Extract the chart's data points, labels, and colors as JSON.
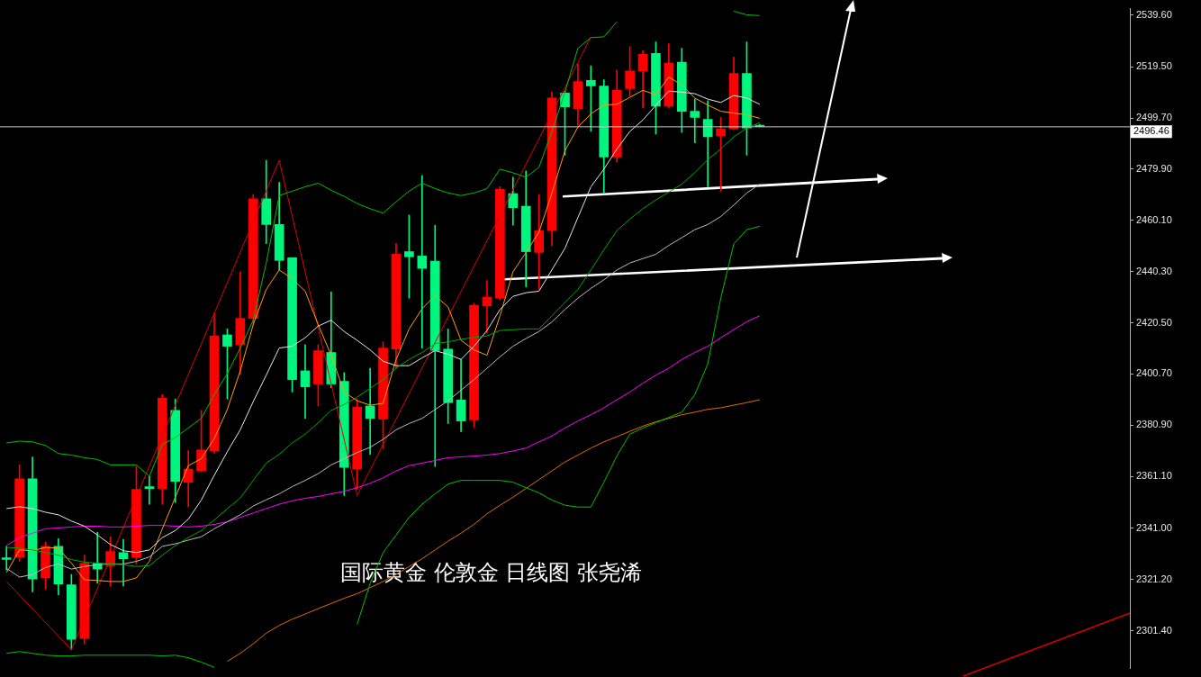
{
  "chart_data": {
    "type": "candlestick",
    "title": "国际黄金 伦敦金 日线图 张尧浠",
    "categories": [
      null,
      null,
      null,
      null,
      null,
      null,
      null,
      null,
      null,
      null,
      null,
      null,
      null,
      null,
      null,
      null,
      null,
      null,
      null,
      null,
      null,
      null,
      null,
      null,
      null,
      null,
      null,
      null,
      null,
      null,
      null,
      null,
      null,
      null,
      null,
      null,
      null,
      null,
      null,
      null,
      null,
      null,
      null,
      null,
      null,
      null,
      null,
      null,
      null,
      null,
      null,
      null,
      null,
      null,
      null,
      null,
      null,
      null,
      null
    ],
    "ohlc": [
      [
        2329.6,
        2334.0,
        2324.8,
        2328.9
      ],
      [
        2329.9,
        2365.5,
        2328.2,
        2360.1
      ],
      [
        2360.1,
        2368.6,
        2316.4,
        2321.4
      ],
      [
        2321.8,
        2335.7,
        2317.4,
        2334.0
      ],
      [
        2334.0,
        2337.0,
        2315.3,
        2319.4
      ],
      [
        2319.1,
        2323.1,
        2294.0,
        2298.0
      ],
      [
        2298.4,
        2330.6,
        2296.3,
        2327.5
      ],
      [
        2327.5,
        2339.4,
        2319.7,
        2325.2
      ],
      [
        2326.5,
        2337.7,
        2318.7,
        2332.0
      ],
      [
        2331.6,
        2336.7,
        2318.7,
        2329.2
      ],
      [
        2329.6,
        2364.9,
        2327.2,
        2356.0
      ],
      [
        2357.1,
        2361.1,
        2350.3,
        2356.4
      ],
      [
        2356.4,
        2392.7,
        2350.3,
        2391.3
      ],
      [
        2386.6,
        2391.0,
        2351.0,
        2359.1
      ],
      [
        2358.8,
        2371.0,
        2349.3,
        2363.9
      ],
      [
        2363.2,
        2386.6,
        2362.8,
        2371.3
      ],
      [
        2371.0,
        2424.2,
        2370.0,
        2415.4
      ],
      [
        2415.8,
        2418.1,
        2391.0,
        2411.4
      ],
      [
        2412.0,
        2440.2,
        2400.5,
        2422.2
      ],
      [
        2422.2,
        2470.1,
        2419.8,
        2468.4
      ],
      [
        2468.4,
        2483.3,
        2451.1,
        2458.5
      ],
      [
        2458.5,
        2474.8,
        2440.9,
        2444.6
      ],
      [
        2445.6,
        2445.6,
        2393.7,
        2398.5
      ],
      [
        2401.9,
        2412.0,
        2383.5,
        2395.7
      ],
      [
        2396.8,
        2412.0,
        2388.3,
        2409.7
      ],
      [
        2409.0,
        2432.4,
        2395.4,
        2396.8
      ],
      [
        2397.8,
        2401.2,
        2353.7,
        2364.5
      ],
      [
        2363.9,
        2391.0,
        2356.0,
        2387.9
      ],
      [
        2388.3,
        2402.9,
        2369.6,
        2383.5
      ],
      [
        2383.2,
        2413.1,
        2371.7,
        2410.7
      ],
      [
        2410.3,
        2451.1,
        2402.9,
        2447.0
      ],
      [
        2448.0,
        2462.2,
        2430.0,
        2446.0
      ],
      [
        2446.3,
        2477.5,
        2410.7,
        2441.5
      ],
      [
        2444.3,
        2458.2,
        2364.9,
        2409.7
      ],
      [
        2410.3,
        2418.1,
        2381.5,
        2389.6
      ],
      [
        2390.6,
        2406.3,
        2378.4,
        2382.5
      ],
      [
        2382.9,
        2428.0,
        2380.1,
        2427.3
      ],
      [
        2427.0,
        2436.8,
        2416.4,
        2430.4
      ],
      [
        2430.0,
        2473.1,
        2429.3,
        2472.1
      ],
      [
        2470.4,
        2476.8,
        2458.2,
        2465.0
      ],
      [
        2465.6,
        2479.2,
        2434.4,
        2448.0
      ],
      [
        2447.7,
        2470.1,
        2433.4,
        2456.1
      ],
      [
        2456.1,
        2509.8,
        2450.4,
        2507.4
      ],
      [
        2509.4,
        2510.1,
        2485.3,
        2504.0
      ],
      [
        2503.3,
        2520.6,
        2496.9,
        2513.8
      ],
      [
        2514.2,
        2519.9,
        2494.5,
        2512.1
      ],
      [
        2512.1,
        2514.5,
        2470.7,
        2484.6
      ],
      [
        2484.6,
        2518.2,
        2482.6,
        2510.4
      ],
      [
        2511.1,
        2527.4,
        2508.1,
        2517.9
      ],
      [
        2517.9,
        2525.7,
        2503.6,
        2524.3
      ],
      [
        2524.7,
        2529.1,
        2493.5,
        2504.3
      ],
      [
        2504.3,
        2528.4,
        2503.6,
        2520.9
      ],
      [
        2521.3,
        2526.7,
        2494.1,
        2502.3
      ],
      [
        2502.3,
        2507.0,
        2490.1,
        2499.9
      ],
      [
        2499.2,
        2506.4,
        2473.1,
        2492.4
      ],
      [
        2492.8,
        2499.9,
        2471.4,
        2495.5
      ],
      [
        2495.5,
        2523.3,
        2495.2,
        2516.9
      ],
      [
        2516.9,
        2529.1,
        2485.3,
        2495.8
      ],
      [
        2496.9,
        2497.2,
        2496.3,
        2496.46
      ]
    ],
    "colors": [
      "#00f57f",
      "#ff0000",
      "#00f57f",
      "#ff0000",
      "#00f57f",
      "#00f57f",
      "#ff0000",
      "#00f57f",
      "#ff0000",
      "#00f57f",
      "#ff0000",
      "#00f57f",
      "#ff0000",
      "#00f57f",
      "#ff0000",
      "#ff0000",
      "#ff0000",
      "#00f57f",
      "#ff0000",
      "#ff0000",
      "#00f57f",
      "#00f57f",
      "#00f57f",
      "#00f57f",
      "#ff0000",
      "#00f57f",
      "#00f57f",
      "#ff0000",
      "#00f57f",
      "#ff0000",
      "#ff0000",
      "#00f57f",
      "#00f57f",
      "#00f57f",
      "#00f57f",
      "#00f57f",
      "#ff0000",
      "#ff0000",
      "#ff0000",
      "#00f57f",
      "#00f57f",
      "#ff0000",
      "#ff0000",
      "#00f57f",
      "#ff0000",
      "#00f57f",
      "#00f57f",
      "#ff0000",
      "#ff0000",
      "#ff0000",
      "#00f57f",
      "#ff0000",
      "#00f57f",
      "#00f57f",
      "#00f57f",
      "#ff0000",
      "#ff0000",
      "#00f57f",
      "#00f57f"
    ],
    "series": [
      {
        "type": "line",
        "color": "#00c000",
        "values": [
          2374.0,
          2374.7,
          2374.4,
          2373.0,
          2369.9,
          2369.3,
          2368.3,
          2367.6,
          2365.5,
          2365.5,
          2365.5,
          2361.1,
          2373.4,
          2376.1,
          2379.8,
          2383.5,
          2392.7,
          2400.8,
          2410.7,
          2421.5,
          2443.6,
          2469.7,
          2471.4,
          2473.1,
          2474.5,
          2471.7,
          2469.4,
          2466.6,
          2464.6,
          2462.9,
          2467.3,
          2471.4,
          2474.5,
          2472.4,
          2470.7,
          2469.7,
          2470.7,
          2472.4,
          2479.9,
          2478.5,
          2476.8,
          2480.6,
          2494.5,
          2509.7,
          2526.7,
          2530.8,
          2531.1,
          2536.9,
          null,
          null,
          null,
          null,
          null,
          null,
          null,
          null,
          null,
          null,
          null
        ]
      },
      {
        "type": "line",
        "color": "#00c000",
        "values": [
          null,
          null,
          null,
          null,
          null,
          null,
          null,
          null,
          null,
          null,
          null,
          null,
          null,
          null,
          null,
          null,
          null,
          null,
          null,
          null,
          null,
          null,
          null,
          null,
          null,
          null,
          null,
          null,
          null,
          null,
          null,
          null,
          null,
          null,
          null,
          null,
          null,
          null,
          null,
          null,
          null,
          null,
          null,
          null,
          null,
          null,
          null,
          null,
          null,
          null,
          null,
          null,
          null,
          null,
          null,
          null,
          2541.0,
          2539.6,
          2539.3
        ]
      },
      {
        "type": "line",
        "color": "#00c000",
        "values": [
          2292.6,
          2293.3,
          2292.6,
          2291.9,
          2291.6,
          2291.6,
          2291.9,
          2291.9,
          2291.9,
          2291.9,
          2291.9,
          2291.9,
          2291.6,
          2291.9,
          2290.9,
          2289.2,
          2287.2,
          null,
          null,
          null,
          null,
          null,
          null,
          null,
          null,
          null,
          null,
          null,
          null,
          null,
          null,
          null,
          null,
          null,
          null,
          null,
          null,
          null,
          null,
          null,
          null,
          null,
          null,
          null,
          null,
          null,
          null,
          null,
          null,
          null,
          null,
          null,
          null,
          null,
          null,
          null,
          null,
          null,
          null
        ]
      },
      {
        "type": "line",
        "color": "#00c000",
        "values": [
          null,
          null,
          null,
          null,
          null,
          null,
          null,
          null,
          null,
          null,
          null,
          null,
          null,
          null,
          null,
          null,
          null,
          null,
          null,
          null,
          null,
          null,
          null,
          null,
          null,
          null,
          null,
          2303.8,
          2319.7,
          2331.6,
          2338.4,
          2345.2,
          2350.3,
          2354.3,
          2358.1,
          2359.5,
          2359.5,
          2359.5,
          2359.5,
          2358.8,
          2356.7,
          2354.7,
          2351.9,
          2349.9,
          2349.2,
          2349.2,
          2358.8,
          2369.0,
          2377.4,
          2379.8,
          2381.8,
          2383.9,
          2385.9,
          2392.7,
          2404.6,
          2430.0,
          2451.0,
          2456.5,
          2457.8
        ]
      },
      {
        "type": "line",
        "color": "#00a800",
        "values": [
          2333.6,
          2333.3,
          2332.6,
          2331.6,
          2330.6,
          2328.9,
          2327.9,
          2327.5,
          2327.2,
          2326.9,
          2326.2,
          2326.5,
          2330.6,
          2334.3,
          2337.4,
          2340.1,
          2344.2,
          2348.6,
          2352.7,
          2359.5,
          2366.2,
          2369.6,
          2374.0,
          2377.4,
          2381.8,
          2386.6,
          2388.9,
          2391.7,
          2395.1,
          2398.5,
          2402.9,
          2406.3,
          2409.0,
          2412.4,
          2413.1,
          2414.1,
          2414.8,
          2415.4,
          2417.5,
          2417.8,
          2418.1,
          2418.1,
          2423.2,
          2428.3,
          2433.4,
          2440.9,
          2448.7,
          2456.1,
          2460.6,
          2464.6,
          2468.0,
          null,
          2474.1,
          2478.6,
          2483.6,
          2487.7,
          2492.4,
          2495.8,
          2497.9
        ]
      },
      {
        "type": "line",
        "color": "#e6e6e6",
        "values": [
          2348.6,
          2349.3,
          2348.6,
          2347.2,
          2346.2,
          2343.8,
          2341.8,
          2338.4,
          2334.7,
          2332.3,
          2331.6,
          2332.6,
          2337.4,
          2340.1,
          2344.5,
          2351.9,
          2361.5,
          2370.6,
          2379.1,
          2390.0,
          2400.2,
          2410.7,
          2411.4,
          2414.7,
          2419.2,
          2421.5,
          2417.1,
          2413.7,
          2410.0,
          2405.6,
          2403.9,
          2403.9,
          2406.9,
          2409.7,
          2408.3,
          2406.3,
          2411.4,
          2417.5,
          2425.6,
          2430.7,
          2432.1,
          2432.7,
          null,
          2449.3,
          2461.2,
          2473.1,
          2479.9,
          2487.7,
          2494.5,
          2498.9,
          2504.6,
          2510.1,
          2509.7,
          2509.1,
          2507.0,
          2505.7,
          2508.4,
          2507.4,
          2505.0
        ]
      },
      {
        "type": "line",
        "color": "#bdbdbd",
        "values": [
          2325.5,
          2322.1,
          2323.1,
          2325.8,
          2327.2,
          2325.2,
          2326.2,
          2326.9,
          2327.2,
          2327.2,
          2328.2,
          2329.9,
          2334.0,
          2335.0,
          2336.4,
          2337.7,
          2340.8,
          2343.5,
          2346.2,
          2349.6,
          2352.0,
          2354.3,
          2357.1,
          2359.5,
          2362.1,
          2365.5,
          2367.9,
          2370.3,
          2372.3,
          2375.4,
          2379.1,
          2381.5,
          2383.5,
          2386.9,
          2390.3,
          2394.4,
          2398.5,
          2402.9,
          2407.3,
          2411.4,
          2414.4,
          2417.1,
          2420.8,
          2425.6,
          2430.0,
          2433.8,
          2437.1,
          2440.9,
          2443.6,
          2445.3,
          2447.0,
          2450.4,
          2453.4,
          2456.5,
          2458.5,
          2461.6,
          2466.0,
          2470.7,
          2474.1
        ]
      },
      {
        "type": "line",
        "color": "#ffa000",
        "values": [
          2323.8,
          2332.6,
          2332.3,
          2333.6,
          2333.3,
          2327.5,
          2321.1,
          2320.8,
          2320.4,
          2320.4,
          2321.8,
          2328.2,
          2340.8,
          2353.0,
          2365.2,
          2367.9,
          2375.7,
          2386.9,
          2401.9,
          2419.8,
          2433.4,
          2440.9,
          2437.5,
          2432.7,
          2419.8,
          2407.9,
          2393.7,
          2390.3,
          2388.6,
          2389.3,
          2406.3,
          2418.1,
          2425.9,
          2431.0,
          2426.6,
          2413.7,
          2410.0,
          2407.9,
          2423.2,
          2440.2,
          2447.7,
          2455.5,
          2470.7,
          2487.0,
          2496.2,
          2501.3,
          2504.7,
          2505.0,
          2507.7,
          2510.4,
          2508.7,
          2515.5,
          2512.5,
          2507.4,
          2504.7,
          2502.3,
          2501.6,
          2500.9,
          2499.6
        ]
      },
      {
        "type": "line",
        "color": "#ff00ff",
        "values": [
          2334.3,
          2337.4,
          2339.1,
          2340.8,
          2341.1,
          2341.5,
          2341.8,
          2341.8,
          2341.5,
          2341.5,
          2341.8,
          2342.1,
          2342.1,
          2341.8,
          2341.5,
          2341.8,
          2342.5,
          2343.5,
          2345.2,
          2346.9,
          2348.6,
          2350.3,
          2351.6,
          2352.6,
          2353.3,
          2354.3,
          2355.3,
          2356.7,
          2358.4,
          2360.5,
          2363.2,
          2365.2,
          2366.2,
          2367.2,
          2368.3,
          2368.6,
          2368.9,
          2369.3,
          2369.9,
          2370.9,
          2372.0,
          2374.4,
          2376.7,
          2379.8,
          2382.5,
          2384.9,
          2387.6,
          2390.7,
          2393.7,
          2397.1,
          2400.2,
          2402.9,
          2406.3,
          2409.0,
          2411.4,
          2414.7,
          2417.8,
          2420.9,
          2423.2
        ]
      },
      {
        "type": "line",
        "color": "#e06c00",
        "values": [
          null,
          null,
          null,
          null,
          null,
          null,
          null,
          null,
          null,
          null,
          null,
          null,
          null,
          null,
          null,
          null,
          null,
          2289.5,
          2292.6,
          2296.3,
          2300.4,
          2303.4,
          2305.8,
          2307.8,
          2309.9,
          2311.9,
          2313.9,
          2315.7,
          2318.0,
          2320.4,
          2323.1,
          2326.2,
          2329.2,
          2332.6,
          2336.0,
          2339.1,
          2342.5,
          2346.6,
          2349.9,
          2353.0,
          2356.4,
          2359.8,
          2363.2,
          2366.6,
          2369.3,
          2372.0,
          2374.4,
          2376.4,
          2378.5,
          2380.5,
          2382.2,
          2383.5,
          2384.9,
          2385.9,
          2387.0,
          2387.6,
          2388.6,
          2389.6,
          2390.7
        ]
      },
      {
        "type": "line",
        "color": "#e00000",
        "values": [
          2320.4,
          null,
          null,
          null,
          null,
          2294.0,
          null,
          null,
          null,
          null,
          null,
          null,
          null,
          null,
          null,
          null,
          null,
          null,
          null,
          null,
          null,
          2483.3,
          null,
          null,
          null,
          null,
          null,
          2353.7,
          null,
          null,
          null,
          null,
          null,
          null,
          null,
          null,
          null,
          null,
          null,
          null,
          null,
          null,
          null,
          null,
          null,
          2531.1,
          null,
          null,
          null,
          null,
          null,
          null,
          null,
          null,
          null,
          null,
          null,
          null,
          null
        ]
      }
    ],
    "ylim": [
      2286.8,
      2542.0
    ],
    "yticks": [
      {
        "value": 2301.4,
        "label": "2301.40"
      },
      {
        "value": 2321.2,
        "label": "2321.20"
      },
      {
        "value": 2341.0,
        "label": "2341.00"
      },
      {
        "value": 2361.1,
        "label": "2361.10"
      },
      {
        "value": 2380.9,
        "label": "2380.90"
      },
      {
        "value": 2400.7,
        "label": "2400.70"
      },
      {
        "value": 2420.5,
        "label": "2420.50"
      },
      {
        "value": 2440.3,
        "label": "2440.30"
      },
      {
        "value": 2460.1,
        "label": "2460.10"
      },
      {
        "value": 2479.9,
        "label": "2479.90"
      },
      {
        "value": 2499.7,
        "label": "2499.70"
      },
      {
        "value": 2519.5,
        "label": "2519.50"
      },
      {
        "value": 2539.6,
        "label": "2539.60"
      }
    ],
    "tick_labels": "y",
    "ref_lines": [
      {
        "axis": "y",
        "value": 2496.46,
        "label": "2496.46",
        "color": "#c8c8c8"
      }
    ]
  }
}
